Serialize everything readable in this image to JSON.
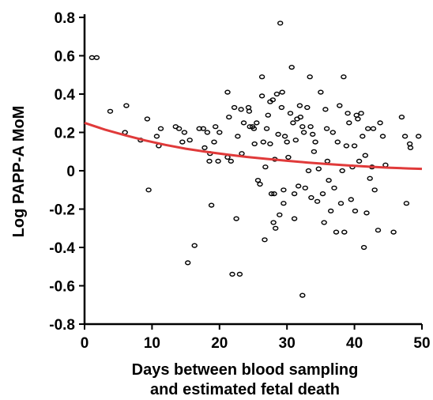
{
  "chart_data": {
    "type": "scatter",
    "title": "",
    "xlabel_lines": [
      "Days between blood  sampling",
      "and estimated fetal death"
    ],
    "ylabel": "Log PAPP-A MoM",
    "xlim": [
      0,
      50
    ],
    "ylim": [
      -0.8,
      0.8
    ],
    "xticks": [
      "0",
      "10",
      "20",
      "30",
      "40",
      "50"
    ],
    "yticks": [
      "0.8",
      "0.6",
      "0.4",
      "0.2",
      "0",
      "-0.2",
      "-0.4",
      "-0.6",
      "-0.8"
    ],
    "grid": false,
    "legend": "none",
    "colors": {
      "points": "#000000",
      "trend": "#e03a3a",
      "axes": "#000000"
    },
    "series": [
      {
        "kind": "scatter",
        "points": [
          [
            1.1,
            0.59
          ],
          [
            1.8,
            0.59
          ],
          [
            3.8,
            0.31
          ],
          [
            6.0,
            0.2
          ],
          [
            6.2,
            0.34
          ],
          [
            8.3,
            0.16
          ],
          [
            9.3,
            0.27
          ],
          [
            9.5,
            -0.1
          ],
          [
            10.7,
            0.18
          ],
          [
            11.3,
            0.22
          ],
          [
            11.0,
            0.13
          ],
          [
            13.5,
            0.23
          ],
          [
            14.0,
            0.22
          ],
          [
            14.8,
            0.2
          ],
          [
            14.5,
            0.15
          ],
          [
            15.6,
            0.16
          ],
          [
            15.3,
            -0.48
          ],
          [
            16.3,
            -0.39
          ],
          [
            17.0,
            0.22
          ],
          [
            17.6,
            0.22
          ],
          [
            17.8,
            0.12
          ],
          [
            18.2,
            0.2
          ],
          [
            18.5,
            0.05
          ],
          [
            18.8,
            -0.18
          ],
          [
            18.6,
            0.09
          ],
          [
            19.4,
            0.23
          ],
          [
            19.2,
            0.15
          ],
          [
            19.8,
            0.05
          ],
          [
            20.0,
            0.2
          ],
          [
            21.2,
            0.41
          ],
          [
            21.4,
            0.28
          ],
          [
            21.2,
            0.07
          ],
          [
            21.7,
            0.05
          ],
          [
            21.9,
            -0.54
          ],
          [
            22.2,
            0.33
          ],
          [
            22.5,
            -0.25
          ],
          [
            22.7,
            0.18
          ],
          [
            23.0,
            -0.54
          ],
          [
            23.2,
            0.32
          ],
          [
            23.3,
            0.09
          ],
          [
            23.6,
            0.25
          ],
          [
            24.3,
            0.33
          ],
          [
            24.5,
            0.23
          ],
          [
            24.4,
            0.31
          ],
          [
            24.9,
            0.23
          ],
          [
            25.1,
            0.22
          ],
          [
            25.5,
            0.25
          ],
          [
            25.2,
            0.14
          ],
          [
            25.7,
            -0.05
          ],
          [
            26.0,
            -0.07
          ],
          [
            26.3,
            0.49
          ],
          [
            26.3,
            0.39
          ],
          [
            26.5,
            0.15
          ],
          [
            26.7,
            -0.36
          ],
          [
            26.8,
            0.02
          ],
          [
            27.0,
            0.22
          ],
          [
            27.2,
            0.29
          ],
          [
            27.5,
            0.14
          ],
          [
            27.7,
            -0.12
          ],
          [
            27.5,
            0.36
          ],
          [
            27.9,
            0.37
          ],
          [
            28.1,
            -0.12
          ],
          [
            28.2,
            0.06
          ],
          [
            28.0,
            -0.27
          ],
          [
            28.3,
            -0.3
          ],
          [
            28.5,
            0.4
          ],
          [
            28.7,
            0.19
          ],
          [
            28.9,
            -0.23
          ],
          [
            29.0,
            0.77
          ],
          [
            29.3,
            0.41
          ],
          [
            29.2,
            0.33
          ],
          [
            29.5,
            -0.1
          ],
          [
            29.7,
            0.18
          ],
          [
            29.5,
            -0.17
          ],
          [
            30.0,
            0.15
          ],
          [
            30.2,
            0.07
          ],
          [
            30.5,
            0.3
          ],
          [
            30.7,
            0.54
          ],
          [
            30.9,
            0.25
          ],
          [
            31.1,
            -0.12
          ],
          [
            31.1,
            -0.25
          ],
          [
            31.3,
            0.16
          ],
          [
            31.5,
            0.27
          ],
          [
            31.7,
            -0.08
          ],
          [
            31.9,
            0.34
          ],
          [
            32.0,
            0.28
          ],
          [
            32.3,
            0.23
          ],
          [
            32.3,
            -0.65
          ],
          [
            32.5,
            0.2
          ],
          [
            32.7,
            -0.09
          ],
          [
            33.0,
            0.33
          ],
          [
            33.2,
            0.0
          ],
          [
            33.4,
            0.49
          ],
          [
            33.5,
            0.23
          ],
          [
            33.6,
            -0.14
          ],
          [
            33.8,
            0.19
          ],
          [
            34.0,
            0.1
          ],
          [
            34.2,
            0.15
          ],
          [
            34.5,
            -0.16
          ],
          [
            34.7,
            0.01
          ],
          [
            35.0,
            0.41
          ],
          [
            35.3,
            -0.12
          ],
          [
            35.5,
            -0.27
          ],
          [
            35.7,
            0.32
          ],
          [
            35.9,
            0.22
          ],
          [
            36.0,
            0.05
          ],
          [
            36.2,
            -0.05
          ],
          [
            36.5,
            -0.21
          ],
          [
            36.8,
            0.2
          ],
          [
            37.0,
            -0.09
          ],
          [
            37.3,
            -0.32
          ],
          [
            37.5,
            0.15
          ],
          [
            37.8,
            0.34
          ],
          [
            38.0,
            -0.17
          ],
          [
            38.2,
            0.0
          ],
          [
            38.4,
            0.49
          ],
          [
            38.5,
            -0.32
          ],
          [
            38.8,
            0.13
          ],
          [
            39.0,
            0.3
          ],
          [
            39.2,
            0.25
          ],
          [
            39.5,
            -0.15
          ],
          [
            39.7,
            0.02
          ],
          [
            40.0,
            0.13
          ],
          [
            40.1,
            -0.21
          ],
          [
            40.3,
            0.29
          ],
          [
            40.5,
            0.27
          ],
          [
            40.7,
            0.05
          ],
          [
            41.0,
            0.3
          ],
          [
            41.2,
            0.18
          ],
          [
            41.4,
            -0.4
          ],
          [
            41.6,
            0.08
          ],
          [
            41.8,
            -0.22
          ],
          [
            42.0,
            0.22
          ],
          [
            42.3,
            -0.04
          ],
          [
            42.6,
            0.02
          ],
          [
            42.8,
            0.22
          ],
          [
            43.0,
            -0.1
          ],
          [
            43.5,
            -0.31
          ],
          [
            43.8,
            0.25
          ],
          [
            44.2,
            0.18
          ],
          [
            44.6,
            0.03
          ],
          [
            45.8,
            -0.32
          ],
          [
            47.0,
            0.28
          ],
          [
            47.5,
            0.18
          ],
          [
            47.7,
            -0.17
          ],
          [
            48.2,
            0.14
          ],
          [
            48.3,
            0.12
          ],
          [
            49.5,
            0.18
          ]
        ]
      },
      {
        "kind": "line",
        "points": [
          [
            0,
            0.25
          ],
          [
            3,
            0.215
          ],
          [
            6,
            0.185
          ],
          [
            9,
            0.158
          ],
          [
            12,
            0.135
          ],
          [
            15,
            0.115
          ],
          [
            18,
            0.099
          ],
          [
            21,
            0.085
          ],
          [
            24,
            0.072
          ],
          [
            27,
            0.062
          ],
          [
            30,
            0.052
          ],
          [
            33,
            0.043
          ],
          [
            36,
            0.035
          ],
          [
            39,
            0.028
          ],
          [
            42,
            0.022
          ],
          [
            45,
            0.016
          ],
          [
            48,
            0.012
          ],
          [
            50,
            0.01
          ]
        ]
      }
    ]
  }
}
